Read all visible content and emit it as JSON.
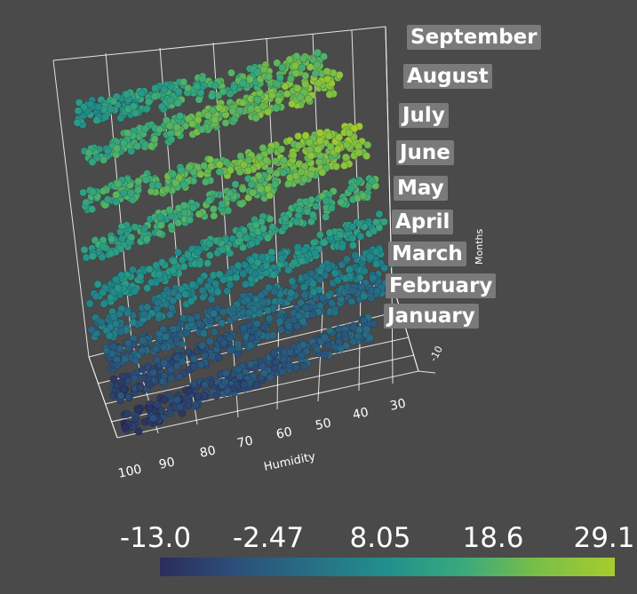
{
  "chart_data": {
    "type": "scatter",
    "dimension": "3d",
    "xlabel": "Humidity",
    "zlabel": "Months",
    "x_ticks": [
      "100",
      "90",
      "80",
      "70",
      "60",
      "50",
      "40",
      "30"
    ],
    "y_ticks": [
      "-10"
    ],
    "xlim": [
      25,
      100
    ],
    "month_labels": [
      "January",
      "February",
      "March",
      "April",
      "May",
      "June",
      "July",
      "August",
      "September"
    ],
    "series": [
      {
        "month": "January",
        "humidity_range": [
          100,
          30
        ],
        "value_range": [
          -13.0,
          2.0
        ]
      },
      {
        "month": "February",
        "humidity_range": [
          100,
          30
        ],
        "value_range": [
          -11.0,
          5.0
        ]
      },
      {
        "month": "March",
        "humidity_range": [
          100,
          30
        ],
        "value_range": [
          -7.0,
          9.0
        ]
      },
      {
        "month": "April",
        "humidity_range": [
          100,
          30
        ],
        "value_range": [
          -1.0,
          15.0
        ]
      },
      {
        "month": "May",
        "humidity_range": [
          100,
          30
        ],
        "value_range": [
          4.0,
          20.0
        ]
      },
      {
        "month": "June",
        "humidity_range": [
          100,
          30
        ],
        "value_range": [
          8.0,
          26.0
        ]
      },
      {
        "month": "July",
        "humidity_range": [
          100,
          30
        ],
        "value_range": [
          10.0,
          29.1
        ]
      },
      {
        "month": "August",
        "humidity_range": [
          100,
          30
        ],
        "value_range": [
          9.0,
          28.0
        ]
      },
      {
        "month": "September",
        "humidity_range": [
          100,
          30
        ],
        "value_range": [
          5.0,
          25.0
        ]
      }
    ],
    "colorbar": {
      "labels": [
        "-13.0",
        "-2.47",
        "8.05",
        "18.6",
        "29.1"
      ],
      "range": [
        -13.0,
        29.1
      ],
      "colormap": [
        "#2b2d5c",
        "#2c4f7a",
        "#276f85",
        "#21908c",
        "#3aa97c",
        "#7bbf47",
        "#a6cc2e"
      ]
    },
    "background": "#4a4a4a",
    "grid": true
  }
}
